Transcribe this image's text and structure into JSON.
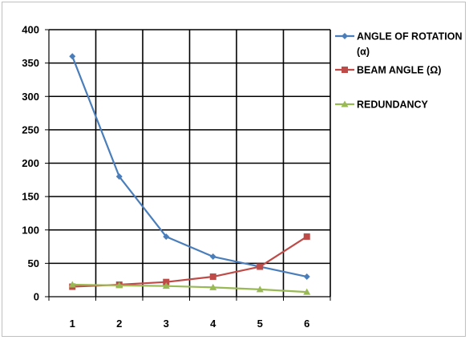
{
  "chart_data": {
    "type": "line",
    "title": "",
    "xlabel": "",
    "ylabel": "",
    "categories": [
      "1",
      "2",
      "3",
      "4",
      "5",
      "6"
    ],
    "ylim": [
      0,
      400
    ],
    "yticks": [
      "0",
      "50",
      "100",
      "150",
      "200",
      "250",
      "300",
      "350",
      "400"
    ],
    "grid": true,
    "legend_position": "right",
    "series": [
      {
        "name": "ANGLE OF ROTATION (α)",
        "legend_lines": [
          "ANGLE OF ROTATION",
          "(α)"
        ],
        "color": "#4a7ebb",
        "marker": "diamond",
        "values": [
          360,
          180,
          90,
          60,
          45,
          30
        ]
      },
      {
        "name": "BEAM ANGLE (Ω)",
        "legend_lines": [
          "BEAM ANGLE (Ω)"
        ],
        "color": "#be4b48",
        "marker": "square",
        "values": [
          15,
          18,
          22,
          30,
          45,
          90
        ]
      },
      {
        "name": "REDUNDANCY",
        "legend_lines": [
          "REDUNDANCY"
        ],
        "color": "#98b954",
        "marker": "triangle",
        "values": [
          18,
          17,
          16,
          14,
          11,
          7
        ]
      }
    ]
  }
}
